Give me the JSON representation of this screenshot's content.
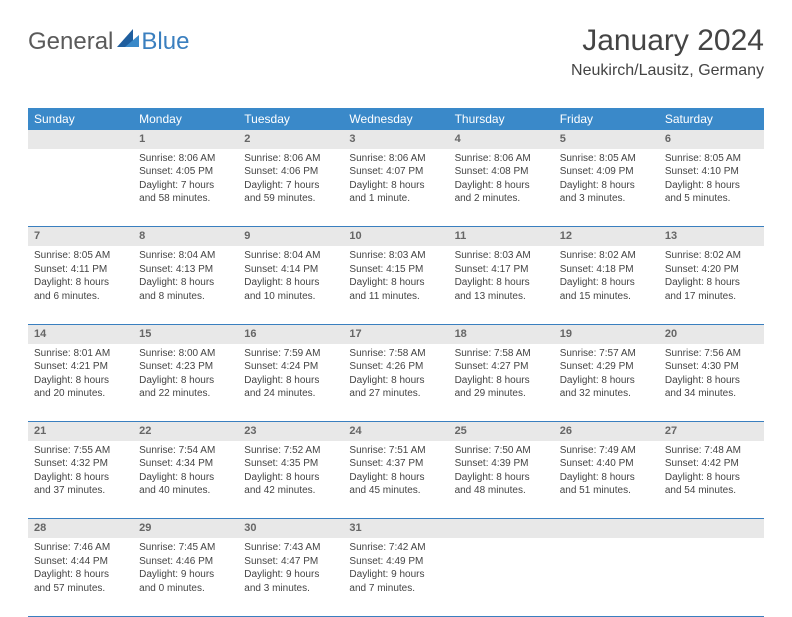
{
  "logo": {
    "part1": "General",
    "part2": "Blue"
  },
  "brand_colors": {
    "accent": "#3a89c9",
    "text": "#444444",
    "muted": "#666666",
    "row_bg": "#e8e8e8"
  },
  "title": {
    "month": "January 2024",
    "location": "Neukirch/Lausitz, Germany"
  },
  "day_headers": [
    "Sunday",
    "Monday",
    "Tuesday",
    "Wednesday",
    "Thursday",
    "Friday",
    "Saturday"
  ],
  "weeks": [
    {
      "nums": [
        "",
        "1",
        "2",
        "3",
        "4",
        "5",
        "6"
      ],
      "cells": [
        {
          "sr": "",
          "ss": "",
          "dl1": "",
          "dl2": ""
        },
        {
          "sr": "Sunrise: 8:06 AM",
          "ss": "Sunset: 4:05 PM",
          "dl1": "Daylight: 7 hours",
          "dl2": "and 58 minutes."
        },
        {
          "sr": "Sunrise: 8:06 AM",
          "ss": "Sunset: 4:06 PM",
          "dl1": "Daylight: 7 hours",
          "dl2": "and 59 minutes."
        },
        {
          "sr": "Sunrise: 8:06 AM",
          "ss": "Sunset: 4:07 PM",
          "dl1": "Daylight: 8 hours",
          "dl2": "and 1 minute."
        },
        {
          "sr": "Sunrise: 8:06 AM",
          "ss": "Sunset: 4:08 PM",
          "dl1": "Daylight: 8 hours",
          "dl2": "and 2 minutes."
        },
        {
          "sr": "Sunrise: 8:05 AM",
          "ss": "Sunset: 4:09 PM",
          "dl1": "Daylight: 8 hours",
          "dl2": "and 3 minutes."
        },
        {
          "sr": "Sunrise: 8:05 AM",
          "ss": "Sunset: 4:10 PM",
          "dl1": "Daylight: 8 hours",
          "dl2": "and 5 minutes."
        }
      ]
    },
    {
      "nums": [
        "7",
        "8",
        "9",
        "10",
        "11",
        "12",
        "13"
      ],
      "cells": [
        {
          "sr": "Sunrise: 8:05 AM",
          "ss": "Sunset: 4:11 PM",
          "dl1": "Daylight: 8 hours",
          "dl2": "and 6 minutes."
        },
        {
          "sr": "Sunrise: 8:04 AM",
          "ss": "Sunset: 4:13 PM",
          "dl1": "Daylight: 8 hours",
          "dl2": "and 8 minutes."
        },
        {
          "sr": "Sunrise: 8:04 AM",
          "ss": "Sunset: 4:14 PM",
          "dl1": "Daylight: 8 hours",
          "dl2": "and 10 minutes."
        },
        {
          "sr": "Sunrise: 8:03 AM",
          "ss": "Sunset: 4:15 PM",
          "dl1": "Daylight: 8 hours",
          "dl2": "and 11 minutes."
        },
        {
          "sr": "Sunrise: 8:03 AM",
          "ss": "Sunset: 4:17 PM",
          "dl1": "Daylight: 8 hours",
          "dl2": "and 13 minutes."
        },
        {
          "sr": "Sunrise: 8:02 AM",
          "ss": "Sunset: 4:18 PM",
          "dl1": "Daylight: 8 hours",
          "dl2": "and 15 minutes."
        },
        {
          "sr": "Sunrise: 8:02 AM",
          "ss": "Sunset: 4:20 PM",
          "dl1": "Daylight: 8 hours",
          "dl2": "and 17 minutes."
        }
      ]
    },
    {
      "nums": [
        "14",
        "15",
        "16",
        "17",
        "18",
        "19",
        "20"
      ],
      "cells": [
        {
          "sr": "Sunrise: 8:01 AM",
          "ss": "Sunset: 4:21 PM",
          "dl1": "Daylight: 8 hours",
          "dl2": "and 20 minutes."
        },
        {
          "sr": "Sunrise: 8:00 AM",
          "ss": "Sunset: 4:23 PM",
          "dl1": "Daylight: 8 hours",
          "dl2": "and 22 minutes."
        },
        {
          "sr": "Sunrise: 7:59 AM",
          "ss": "Sunset: 4:24 PM",
          "dl1": "Daylight: 8 hours",
          "dl2": "and 24 minutes."
        },
        {
          "sr": "Sunrise: 7:58 AM",
          "ss": "Sunset: 4:26 PM",
          "dl1": "Daylight: 8 hours",
          "dl2": "and 27 minutes."
        },
        {
          "sr": "Sunrise: 7:58 AM",
          "ss": "Sunset: 4:27 PM",
          "dl1": "Daylight: 8 hours",
          "dl2": "and 29 minutes."
        },
        {
          "sr": "Sunrise: 7:57 AM",
          "ss": "Sunset: 4:29 PM",
          "dl1": "Daylight: 8 hours",
          "dl2": "and 32 minutes."
        },
        {
          "sr": "Sunrise: 7:56 AM",
          "ss": "Sunset: 4:30 PM",
          "dl1": "Daylight: 8 hours",
          "dl2": "and 34 minutes."
        }
      ]
    },
    {
      "nums": [
        "21",
        "22",
        "23",
        "24",
        "25",
        "26",
        "27"
      ],
      "cells": [
        {
          "sr": "Sunrise: 7:55 AM",
          "ss": "Sunset: 4:32 PM",
          "dl1": "Daylight: 8 hours",
          "dl2": "and 37 minutes."
        },
        {
          "sr": "Sunrise: 7:54 AM",
          "ss": "Sunset: 4:34 PM",
          "dl1": "Daylight: 8 hours",
          "dl2": "and 40 minutes."
        },
        {
          "sr": "Sunrise: 7:52 AM",
          "ss": "Sunset: 4:35 PM",
          "dl1": "Daylight: 8 hours",
          "dl2": "and 42 minutes."
        },
        {
          "sr": "Sunrise: 7:51 AM",
          "ss": "Sunset: 4:37 PM",
          "dl1": "Daylight: 8 hours",
          "dl2": "and 45 minutes."
        },
        {
          "sr": "Sunrise: 7:50 AM",
          "ss": "Sunset: 4:39 PM",
          "dl1": "Daylight: 8 hours",
          "dl2": "and 48 minutes."
        },
        {
          "sr": "Sunrise: 7:49 AM",
          "ss": "Sunset: 4:40 PM",
          "dl1": "Daylight: 8 hours",
          "dl2": "and 51 minutes."
        },
        {
          "sr": "Sunrise: 7:48 AM",
          "ss": "Sunset: 4:42 PM",
          "dl1": "Daylight: 8 hours",
          "dl2": "and 54 minutes."
        }
      ]
    },
    {
      "nums": [
        "28",
        "29",
        "30",
        "31",
        "",
        "",
        ""
      ],
      "cells": [
        {
          "sr": "Sunrise: 7:46 AM",
          "ss": "Sunset: 4:44 PM",
          "dl1": "Daylight: 8 hours",
          "dl2": "and 57 minutes."
        },
        {
          "sr": "Sunrise: 7:45 AM",
          "ss": "Sunset: 4:46 PM",
          "dl1": "Daylight: 9 hours",
          "dl2": "and 0 minutes."
        },
        {
          "sr": "Sunrise: 7:43 AM",
          "ss": "Sunset: 4:47 PM",
          "dl1": "Daylight: 9 hours",
          "dl2": "and 3 minutes."
        },
        {
          "sr": "Sunrise: 7:42 AM",
          "ss": "Sunset: 4:49 PM",
          "dl1": "Daylight: 9 hours",
          "dl2": "and 7 minutes."
        },
        {
          "sr": "",
          "ss": "",
          "dl1": "",
          "dl2": ""
        },
        {
          "sr": "",
          "ss": "",
          "dl1": "",
          "dl2": ""
        },
        {
          "sr": "",
          "ss": "",
          "dl1": "",
          "dl2": ""
        }
      ]
    }
  ]
}
